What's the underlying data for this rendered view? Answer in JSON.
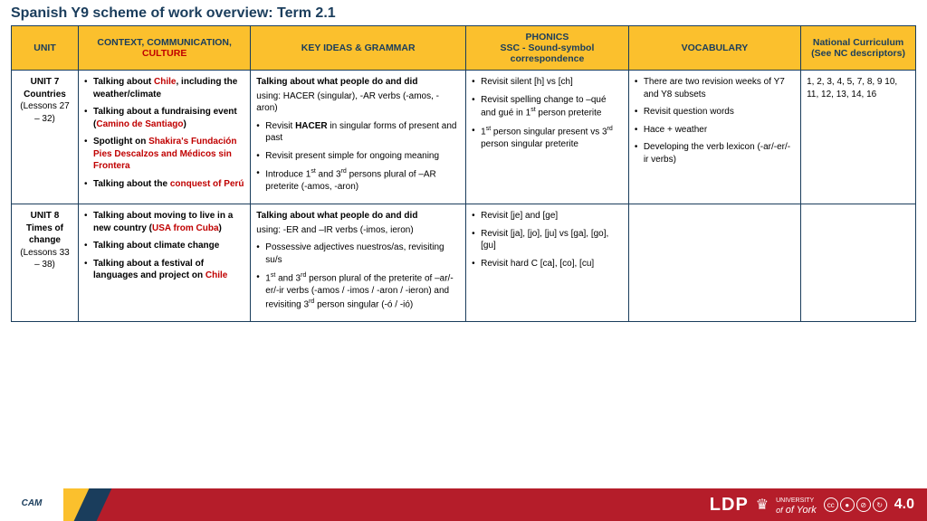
{
  "title": "Spanish Y9 scheme of work overview: Term 2.1",
  "headers": {
    "unit": "UNIT",
    "context_a": "CONTEXT, COMMUNICATION,",
    "context_b": "CULTURE",
    "key": "KEY IDEAS & GRAMMAR",
    "phonics_a": "PHONICS",
    "phonics_b": "SSC - Sound-symbol",
    "phonics_c": "correspondence",
    "vocab": "VOCABULARY",
    "nc_a": "National Curriculum",
    "nc_b": "(See NC descriptors)"
  },
  "rows": [
    {
      "unit_title": "UNIT 7",
      "unit_sub": "Countries",
      "unit_lessons": "(Lessons 27 – 32)",
      "context": [
        {
          "pre": "Talking about ",
          "red": "Chile",
          "post": ", including the weather/climate"
        },
        {
          "pre": "Talking about a fundraising event (",
          "red": "Camino de Santiago",
          "post": ")"
        },
        {
          "pre": "Spotlight on ",
          "red": "Shakira's Fundación Pies Descalzos and Médicos sin Frontera",
          "post": ""
        },
        {
          "pre": "Talking about the ",
          "red": "conquest of Perú",
          "post": ""
        }
      ],
      "key_lead": "Talking about what people do and did",
      "key_sub": "using: HACER (singular), -AR verbs (-amos, -aron)",
      "key_items": [
        "Revisit <b>HACER</b> in singular forms of present and past",
        "Revisit present simple for ongoing meaning",
        "Introduce 1<sup>st</sup> and 3<sup>rd</sup> persons plural of –AR preterite (-amos, -aron)"
      ],
      "phonics": [
        "Revisit silent [h] vs [ch]",
        "Revisit spelling change to –qué and gué in 1<sup>st</sup> person preterite",
        "1<sup>st</sup> person singular present vs 3<sup>rd</sup> person singular preterite"
      ],
      "vocab": [
        "There are two revision weeks of Y7 and Y8 subsets",
        "Revisit question words",
        "Hace + weather",
        "Developing the verb lexicon (-ar/-er/-ir verbs)"
      ],
      "nc": "1, 2, 3, 4, 5, 7, 8, 9 10, 11, 12, 13, 14, 16"
    },
    {
      "unit_title": "UNIT 8",
      "unit_sub": "Times of change",
      "unit_lessons": "(Lessons 33 – 38)",
      "context": [
        {
          "pre": "Talking about moving to live in a new country (",
          "red": "USA from Cuba",
          "post": ")"
        },
        {
          "pre": "Talking about climate change",
          "red": "",
          "post": ""
        },
        {
          "pre": "Talking about a festival of languages and project on ",
          "red": "Chile",
          "post": ""
        }
      ],
      "key_lead": "Talking about what people do and did",
      "key_sub": "using: -ER and –IR verbs (-imos, ieron)",
      "key_items": [
        "Possessive adjectives nuestros/as, revisiting su/s",
        "1<sup>st</sup> and 3<sup>rd</sup> person plural of the preterite of –ar/-er/-ir verbs (-amos / -imos / -aron / -ieron) and revisiting 3<sup>rd</sup> person singular (-ó / -ió)"
      ],
      "phonics": [
        "Revisit [je] and [ge]",
        "Revisit [ja], [jo], [ju] vs [ga], [go], [gu]",
        "Revisit hard C [ca], [co], [cu]"
      ],
      "vocab": [],
      "nc": ""
    }
  ],
  "footer": {
    "cam": "CAM",
    "ldp": "LDP",
    "york_a": "UNIVERSITY",
    "york_b": "of York",
    "cc": [
      "cc",
      "①",
      "⊘",
      "④"
    ],
    "ver": "4.0"
  },
  "colors": {
    "header_bg": "#fbc02d",
    "border": "#1a3d5c",
    "red": "#c00000",
    "footer_bg": "#b51d2a"
  }
}
